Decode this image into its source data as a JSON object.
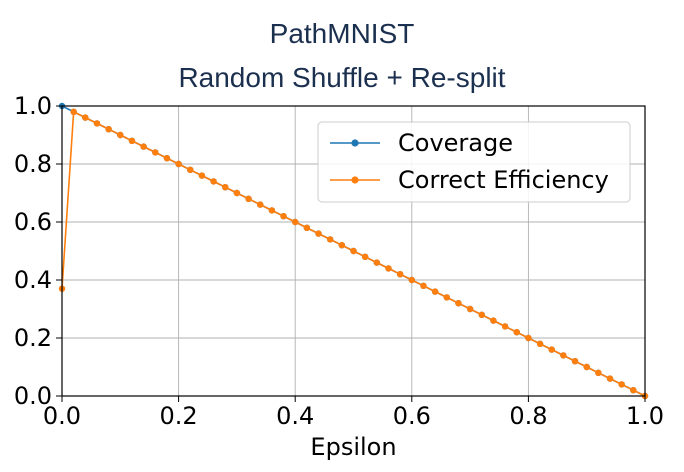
{
  "chart_data": {
    "type": "line",
    "title": "PathMNIST",
    "subtitle": "Random Shuffle + Re-split",
    "xlabel": "Epsilon",
    "ylabel": "",
    "xlim": [
      0.0,
      1.0
    ],
    "ylim": [
      0.0,
      1.0
    ],
    "xticks": [
      "0.0",
      "0.2",
      "0.4",
      "0.6",
      "0.8",
      "1.0"
    ],
    "yticks": [
      "0.0",
      "0.2",
      "0.4",
      "0.6",
      "0.8",
      "1.0"
    ],
    "grid": true,
    "legend_position": "top-right",
    "x": [
      0.0,
      0.02,
      0.04,
      0.06,
      0.08,
      0.1,
      0.12,
      0.14,
      0.16,
      0.18,
      0.2,
      0.22,
      0.24,
      0.26,
      0.28,
      0.3,
      0.32,
      0.34,
      0.36,
      0.38,
      0.4,
      0.42,
      0.44,
      0.46,
      0.48,
      0.5,
      0.52,
      0.54,
      0.56,
      0.58,
      0.6,
      0.62,
      0.64,
      0.66,
      0.68,
      0.7,
      0.72,
      0.74,
      0.76,
      0.78,
      0.8,
      0.82,
      0.84,
      0.86,
      0.88,
      0.9,
      0.92,
      0.94,
      0.96,
      0.98,
      1.0
    ],
    "series": [
      {
        "name": "Coverage",
        "color": "#1f77b4",
        "values": [
          1.0,
          0.98,
          0.96,
          0.94,
          0.92,
          0.9,
          0.88,
          0.86,
          0.84,
          0.82,
          0.8,
          0.78,
          0.76,
          0.74,
          0.72,
          0.7,
          0.68,
          0.66,
          0.64,
          0.62,
          0.6,
          0.58,
          0.56,
          0.54,
          0.52,
          0.5,
          0.48,
          0.46,
          0.44,
          0.42,
          0.4,
          0.38,
          0.36,
          0.34,
          0.32,
          0.3,
          0.28,
          0.26,
          0.24,
          0.22,
          0.2,
          0.18,
          0.16,
          0.14,
          0.12,
          0.1,
          0.08,
          0.06,
          0.04,
          0.02,
          0.0
        ]
      },
      {
        "name": "Correct Efficiency",
        "color": "#ff7f0e",
        "values": [
          0.37,
          0.98,
          0.96,
          0.94,
          0.92,
          0.9,
          0.88,
          0.86,
          0.84,
          0.82,
          0.8,
          0.78,
          0.76,
          0.74,
          0.72,
          0.7,
          0.68,
          0.66,
          0.64,
          0.62,
          0.6,
          0.58,
          0.56,
          0.54,
          0.52,
          0.5,
          0.48,
          0.46,
          0.44,
          0.42,
          0.4,
          0.38,
          0.36,
          0.34,
          0.32,
          0.3,
          0.28,
          0.26,
          0.24,
          0.22,
          0.2,
          0.18,
          0.16,
          0.14,
          0.12,
          0.1,
          0.08,
          0.06,
          0.04,
          0.02,
          0.0
        ]
      }
    ]
  }
}
